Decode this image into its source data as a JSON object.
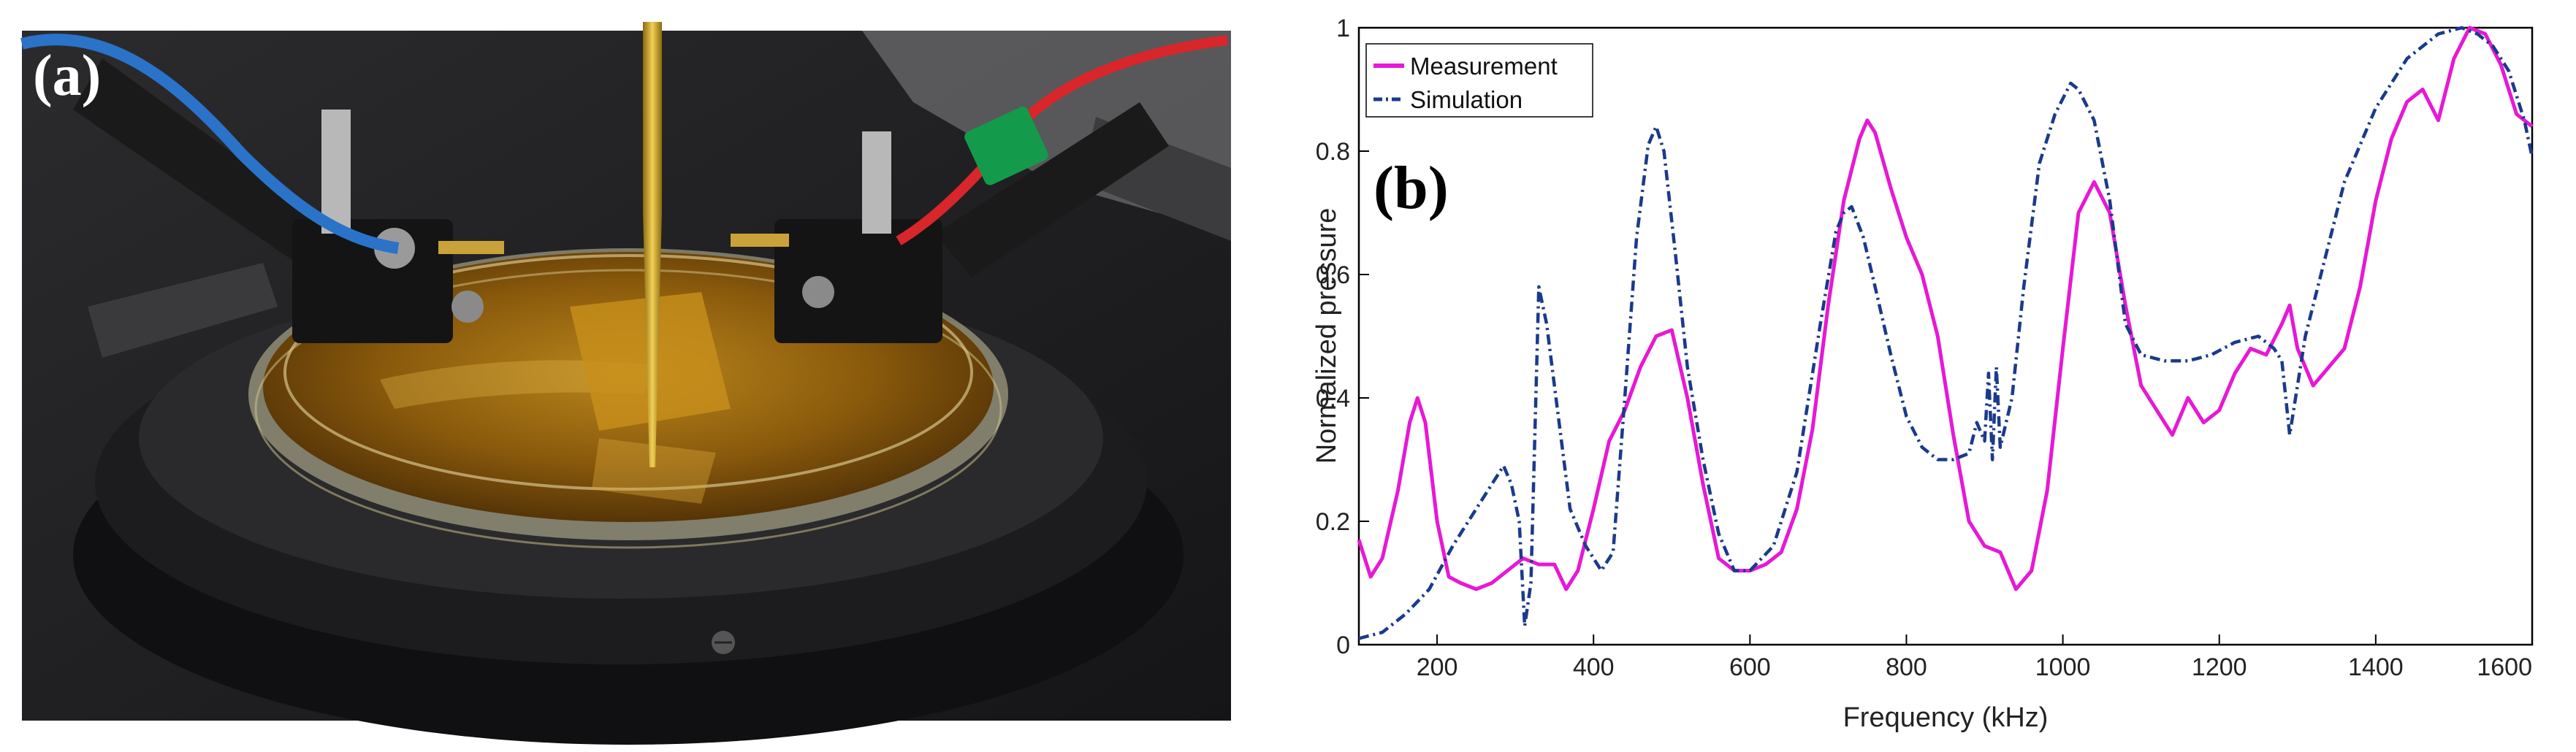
{
  "photo": {
    "label": "(a)"
  },
  "chart_data": {
    "type": "line",
    "panel_label": "(b)",
    "title": "",
    "xlabel": "Frequency (kHz)",
    "ylabel": "Normalized pressure",
    "xlim": [
      100,
      1600
    ],
    "ylim": [
      0,
      1
    ],
    "xticks": [
      200,
      400,
      600,
      800,
      1000,
      1200,
      1400,
      1600
    ],
    "yticks": [
      0,
      0.2,
      0.4,
      0.6,
      0.8,
      1
    ],
    "xtick_labels": [
      "200",
      "400",
      "600",
      "800",
      "1000",
      "1200",
      "1400",
      "1600"
    ],
    "ytick_labels": [
      "0",
      "0.2",
      "0.4",
      "0.6",
      "0.8",
      "1"
    ],
    "grid": false,
    "legend_position": "top-left",
    "series": [
      {
        "name": "Measurement",
        "color": "#e619d4",
        "style": "solid",
        "x": [
          100,
          115,
          130,
          150,
          165,
          175,
          185,
          200,
          215,
          230,
          250,
          270,
          290,
          310,
          330,
          350,
          365,
          380,
          400,
          420,
          440,
          460,
          480,
          500,
          520,
          540,
          560,
          580,
          600,
          620,
          640,
          660,
          680,
          700,
          720,
          740,
          750,
          760,
          780,
          800,
          820,
          840,
          860,
          880,
          900,
          920,
          940,
          960,
          980,
          1000,
          1020,
          1040,
          1060,
          1080,
          1100,
          1120,
          1140,
          1160,
          1180,
          1200,
          1220,
          1240,
          1260,
          1280,
          1290,
          1300,
          1320,
          1340,
          1360,
          1380,
          1400,
          1420,
          1440,
          1460,
          1480,
          1500,
          1520,
          1540,
          1560,
          1580,
          1600
        ],
        "y": [
          0.17,
          0.11,
          0.14,
          0.25,
          0.36,
          0.4,
          0.36,
          0.2,
          0.11,
          0.1,
          0.09,
          0.1,
          0.12,
          0.14,
          0.13,
          0.13,
          0.09,
          0.12,
          0.22,
          0.33,
          0.38,
          0.45,
          0.5,
          0.51,
          0.4,
          0.26,
          0.14,
          0.12,
          0.12,
          0.13,
          0.15,
          0.22,
          0.35,
          0.55,
          0.72,
          0.82,
          0.85,
          0.83,
          0.74,
          0.66,
          0.6,
          0.5,
          0.34,
          0.2,
          0.16,
          0.15,
          0.09,
          0.12,
          0.25,
          0.48,
          0.7,
          0.75,
          0.7,
          0.55,
          0.42,
          0.38,
          0.34,
          0.4,
          0.36,
          0.38,
          0.44,
          0.48,
          0.47,
          0.52,
          0.55,
          0.48,
          0.42,
          0.45,
          0.48,
          0.58,
          0.72,
          0.82,
          0.88,
          0.9,
          0.85,
          0.95,
          1.0,
          0.99,
          0.94,
          0.86,
          0.84
        ]
      },
      {
        "name": "Simulation",
        "color": "#1a3a8c",
        "style": "dashdot",
        "x": [
          100,
          130,
          160,
          190,
          220,
          250,
          270,
          285,
          295,
          305,
          312,
          320,
          330,
          340,
          355,
          370,
          390,
          410,
          425,
          440,
          455,
          470,
          480,
          490,
          505,
          520,
          540,
          560,
          580,
          600,
          630,
          660,
          690,
          710,
          720,
          730,
          745,
          760,
          780,
          800,
          820,
          840,
          860,
          880,
          890,
          900,
          905,
          910,
          915,
          920,
          935,
          950,
          970,
          990,
          1010,
          1020,
          1040,
          1060,
          1080,
          1100,
          1130,
          1160,
          1190,
          1220,
          1250,
          1270,
          1280,
          1290,
          1300,
          1310,
          1330,
          1360,
          1400,
          1440,
          1480,
          1510,
          1530,
          1550,
          1570,
          1590,
          1600
        ],
        "y": [
          0.01,
          0.02,
          0.05,
          0.09,
          0.16,
          0.22,
          0.26,
          0.29,
          0.26,
          0.2,
          0.03,
          0.1,
          0.58,
          0.52,
          0.37,
          0.22,
          0.16,
          0.12,
          0.15,
          0.4,
          0.66,
          0.81,
          0.84,
          0.8,
          0.63,
          0.45,
          0.3,
          0.18,
          0.12,
          0.12,
          0.16,
          0.28,
          0.52,
          0.67,
          0.7,
          0.71,
          0.66,
          0.58,
          0.47,
          0.37,
          0.32,
          0.3,
          0.3,
          0.31,
          0.36,
          0.33,
          0.44,
          0.3,
          0.45,
          0.32,
          0.4,
          0.58,
          0.78,
          0.86,
          0.91,
          0.9,
          0.85,
          0.72,
          0.52,
          0.47,
          0.46,
          0.46,
          0.47,
          0.49,
          0.5,
          0.48,
          0.46,
          0.34,
          0.42,
          0.5,
          0.6,
          0.75,
          0.87,
          0.95,
          0.99,
          1.0,
          0.99,
          0.97,
          0.93,
          0.85,
          0.79
        ]
      }
    ]
  }
}
